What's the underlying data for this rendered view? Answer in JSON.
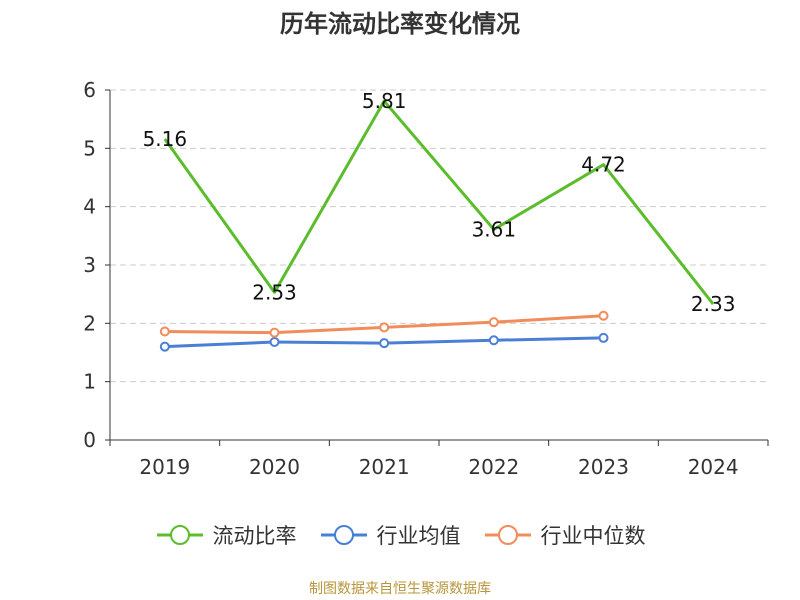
{
  "title": "历年流动比率变化情况",
  "footer": "制图数据来自恒生聚源数据库",
  "legend": [
    {
      "label": "流动比率",
      "color": "#5bbd2b"
    },
    {
      "label": "行业均值",
      "color": "#4a7fd6"
    },
    {
      "label": "行业中位数",
      "color": "#f28c5a"
    }
  ],
  "chart_data": {
    "type": "line",
    "title": "历年流动比率变化情况",
    "categories": [
      "2019",
      "2020",
      "2021",
      "2022",
      "2023",
      "2024"
    ],
    "ylim": [
      0,
      6
    ],
    "yticks": [
      0,
      1,
      2,
      3,
      4,
      5,
      6
    ],
    "grid": true,
    "legend_position": "bottom",
    "series": [
      {
        "name": "流动比率",
        "color": "#5bbd2b",
        "values": [
          5.16,
          2.53,
          5.81,
          3.61,
          4.72,
          2.33
        ],
        "labels": [
          "5.16",
          "2.53",
          "5.81",
          "3.61",
          "4.72",
          "2.33"
        ],
        "markers": false
      },
      {
        "name": "行业均值",
        "color": "#4a7fd6",
        "values": [
          1.6,
          1.68,
          1.66,
          1.71,
          1.75,
          null
        ],
        "markers": true
      },
      {
        "name": "行业中位数",
        "color": "#f28c5a",
        "values": [
          1.86,
          1.84,
          1.93,
          2.02,
          2.13,
          null
        ],
        "markers": true
      }
    ]
  }
}
